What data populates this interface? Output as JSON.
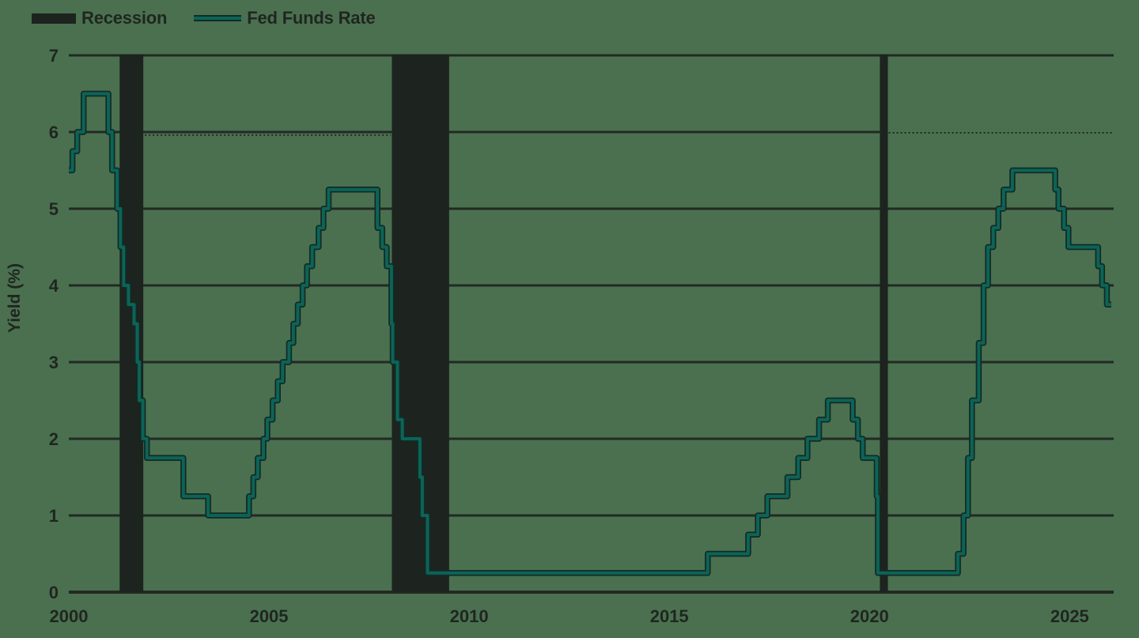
{
  "page": {
    "background_color": "#4a7050",
    "text_color": "#20261f"
  },
  "legend": {
    "items": [
      {
        "label": "Recession",
        "swatch": "black-box",
        "color": "#1d231e"
      },
      {
        "label": "Fed Funds Rate",
        "swatch": "teal-line",
        "color": "#0c6458"
      }
    ]
  },
  "chart_data": {
    "type": "line",
    "title": "",
    "xlabel": "",
    "ylabel": "Yield (%)",
    "ylim": [
      0,
      7
    ],
    "xlim": [
      2000,
      2026.1
    ],
    "yticks": [
      7,
      6,
      5,
      4,
      3,
      2,
      1,
      0
    ],
    "xticks": [
      2000,
      2005,
      2010,
      2015,
      2020,
      2025
    ],
    "grid": "horizontal-solid",
    "legend_position": "top-left",
    "line_color": "#0c6458",
    "line_edge_color": "#122b24",
    "recession_band_color": "#1d231e",
    "recessions": [
      {
        "start": 2001.27,
        "end": 2001.86
      },
      {
        "start": 2008.07,
        "end": 2009.5
      },
      {
        "start": 2020.26,
        "end": 2020.46
      }
    ],
    "dotted_reference_segments": [
      {
        "y": 5.96,
        "from": 2001.9,
        "to": 2008.04
      },
      {
        "y": 5.99,
        "from": 2020.48,
        "to": 2026.1
      }
    ],
    "series": [
      {
        "name": "Fed Funds Rate",
        "style": "step",
        "points": [
          [
            2000.0,
            5.5
          ],
          [
            2000.09,
            5.75
          ],
          [
            2000.21,
            6.0
          ],
          [
            2000.37,
            6.5
          ],
          [
            2000.99,
            6.0
          ],
          [
            2001.08,
            5.5
          ],
          [
            2001.21,
            5.0
          ],
          [
            2001.29,
            4.5
          ],
          [
            2001.37,
            4.0
          ],
          [
            2001.49,
            3.75
          ],
          [
            2001.63,
            3.5
          ],
          [
            2001.71,
            3.0
          ],
          [
            2001.76,
            2.5
          ],
          [
            2001.85,
            2.0
          ],
          [
            2001.95,
            1.75
          ],
          [
            2002.86,
            1.25
          ],
          [
            2003.48,
            1.0
          ],
          [
            2004.5,
            1.25
          ],
          [
            2004.61,
            1.5
          ],
          [
            2004.72,
            1.75
          ],
          [
            2004.86,
            2.0
          ],
          [
            2004.96,
            2.25
          ],
          [
            2005.09,
            2.5
          ],
          [
            2005.22,
            2.75
          ],
          [
            2005.34,
            3.0
          ],
          [
            2005.5,
            3.25
          ],
          [
            2005.61,
            3.5
          ],
          [
            2005.72,
            3.75
          ],
          [
            2005.84,
            4.0
          ],
          [
            2005.95,
            4.25
          ],
          [
            2006.08,
            4.5
          ],
          [
            2006.24,
            4.75
          ],
          [
            2006.36,
            5.0
          ],
          [
            2006.49,
            5.25
          ],
          [
            2007.71,
            4.75
          ],
          [
            2007.83,
            4.5
          ],
          [
            2007.94,
            4.25
          ],
          [
            2008.06,
            3.5
          ],
          [
            2008.09,
            3.0
          ],
          [
            2008.21,
            2.25
          ],
          [
            2008.33,
            2.0
          ],
          [
            2008.77,
            1.5
          ],
          [
            2008.83,
            1.0
          ],
          [
            2008.96,
            0.25
          ],
          [
            2015.96,
            0.5
          ],
          [
            2016.97,
            0.75
          ],
          [
            2017.21,
            1.0
          ],
          [
            2017.45,
            1.25
          ],
          [
            2017.95,
            1.5
          ],
          [
            2018.22,
            1.75
          ],
          [
            2018.45,
            2.0
          ],
          [
            2018.74,
            2.25
          ],
          [
            2018.96,
            2.5
          ],
          [
            2019.58,
            2.25
          ],
          [
            2019.71,
            2.0
          ],
          [
            2019.83,
            1.75
          ],
          [
            2020.18,
            1.25
          ],
          [
            2020.21,
            0.25
          ],
          [
            2022.21,
            0.5
          ],
          [
            2022.35,
            1.0
          ],
          [
            2022.46,
            1.75
          ],
          [
            2022.56,
            2.5
          ],
          [
            2022.73,
            3.25
          ],
          [
            2022.85,
            4.0
          ],
          [
            2022.96,
            4.5
          ],
          [
            2023.09,
            4.75
          ],
          [
            2023.22,
            5.0
          ],
          [
            2023.35,
            5.25
          ],
          [
            2023.57,
            5.5
          ],
          [
            2024.64,
            5.25
          ],
          [
            2024.72,
            5.0
          ],
          [
            2024.86,
            4.75
          ],
          [
            2024.97,
            4.5
          ],
          [
            2025.71,
            4.25
          ],
          [
            2025.81,
            4.0
          ],
          [
            2025.93,
            3.75
          ],
          [
            2026.04,
            3.75
          ]
        ]
      }
    ]
  }
}
